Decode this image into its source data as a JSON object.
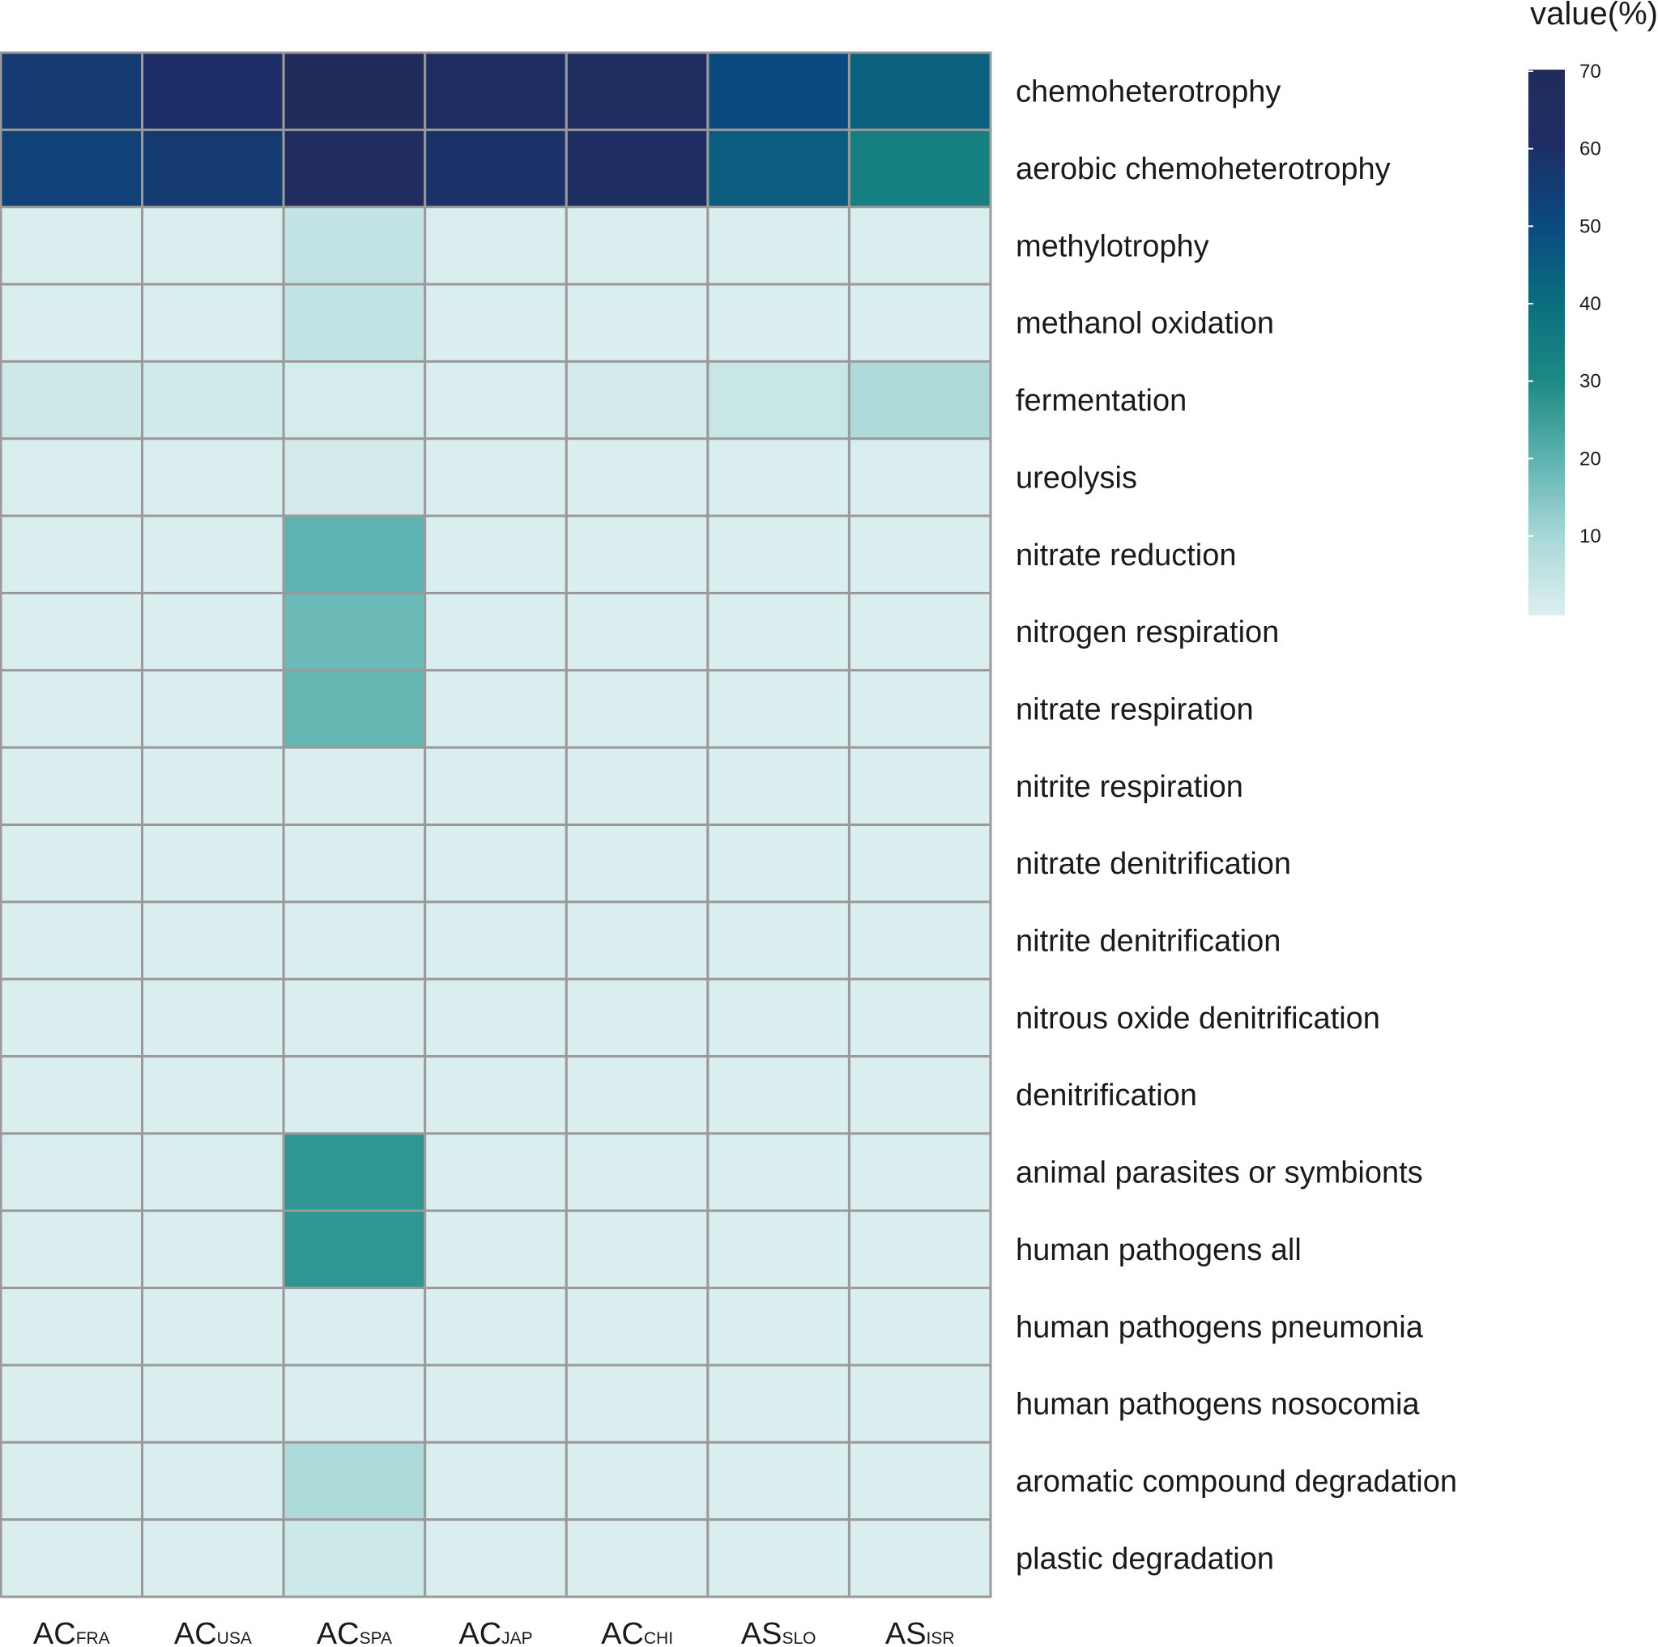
{
  "chart_data": {
    "type": "heatmap",
    "title": "",
    "legend_title": "value(%)",
    "legend_ticks": [
      10,
      20,
      30,
      40,
      50,
      60,
      70
    ],
    "scale_range": [
      0,
      70
    ],
    "colors": {
      "low": "#ddeff0",
      "stops": [
        "#ddeff0",
        "#a9d8d8",
        "#5db3b0",
        "#1d8a84",
        "#0b6e7e",
        "#0a4a80",
        "#1d2f66",
        "#212c5a"
      ],
      "grid": "#9a9a9a"
    },
    "columns": [
      {
        "main": "AC",
        "sub": "FRA"
      },
      {
        "main": "AC",
        "sub": "USA"
      },
      {
        "main": "AC",
        "sub": "SPA"
      },
      {
        "main": "AC",
        "sub": "JAP"
      },
      {
        "main": "AC",
        "sub": "CHI"
      },
      {
        "main": "AS",
        "sub": "SLO"
      },
      {
        "main": "AS",
        "sub": "ISR"
      }
    ],
    "rows": [
      "chemoheterotrophy",
      "aerobic chemoheterotrophy",
      "methylotrophy",
      "methanol oxidation",
      "fermentation",
      "ureolysis",
      "nitrate reduction",
      "nitrogen respiration",
      "nitrate respiration",
      "nitrite respiration",
      "nitrate denitrification",
      "nitrite denitrification",
      "nitrous oxide denitrification",
      "denitrification",
      "animal parasites or symbionts",
      "human pathogens all",
      "human pathogens pneumonia",
      "human pathogens nosocomia",
      "aromatic compound degradation",
      "plastic degradation"
    ],
    "values": [
      [
        56,
        60,
        70,
        63,
        65,
        50,
        44
      ],
      [
        53,
        56,
        67,
        59,
        63,
        45,
        34
      ],
      [
        0.5,
        0.5,
        5,
        0.3,
        0.3,
        0.4,
        0.3
      ],
      [
        0.5,
        0.5,
        5,
        0.3,
        0.3,
        0.4,
        0.3
      ],
      [
        3,
        2.5,
        1.5,
        0.5,
        2,
        4,
        9
      ],
      [
        0.4,
        0.4,
        2,
        0.4,
        0.4,
        0.4,
        0.4
      ],
      [
        0.3,
        0.3,
        20,
        0.3,
        0.3,
        0.3,
        0.3
      ],
      [
        0.3,
        0.3,
        18,
        0.3,
        0.3,
        0.3,
        0.3
      ],
      [
        0.3,
        0.3,
        19,
        0.3,
        0.3,
        0.3,
        0.3
      ],
      [
        0.2,
        0.2,
        0.5,
        0.2,
        0.2,
        0.2,
        0.2
      ],
      [
        0.2,
        0.2,
        0.3,
        0.2,
        0.2,
        0.2,
        0.2
      ],
      [
        0.2,
        0.2,
        0.3,
        0.2,
        0.2,
        0.2,
        0.2
      ],
      [
        0.2,
        0.2,
        0.3,
        0.2,
        0.2,
        0.2,
        0.2
      ],
      [
        0.2,
        0.2,
        0.3,
        0.2,
        0.2,
        0.2,
        0.2
      ],
      [
        0.3,
        0.3,
        27,
        0.3,
        0.3,
        0.3,
        0.3
      ],
      [
        0.3,
        0.3,
        27,
        0.3,
        0.3,
        0.3,
        0.3
      ],
      [
        0.2,
        0.2,
        0.5,
        0.2,
        0.2,
        0.2,
        0.2
      ],
      [
        0.2,
        0.2,
        0.5,
        0.2,
        0.2,
        0.2,
        0.2
      ],
      [
        0.3,
        0.3,
        9,
        0.3,
        0.3,
        0.3,
        0.3
      ],
      [
        0.3,
        0.3,
        3,
        0.3,
        0.3,
        0.3,
        0.3
      ]
    ]
  }
}
